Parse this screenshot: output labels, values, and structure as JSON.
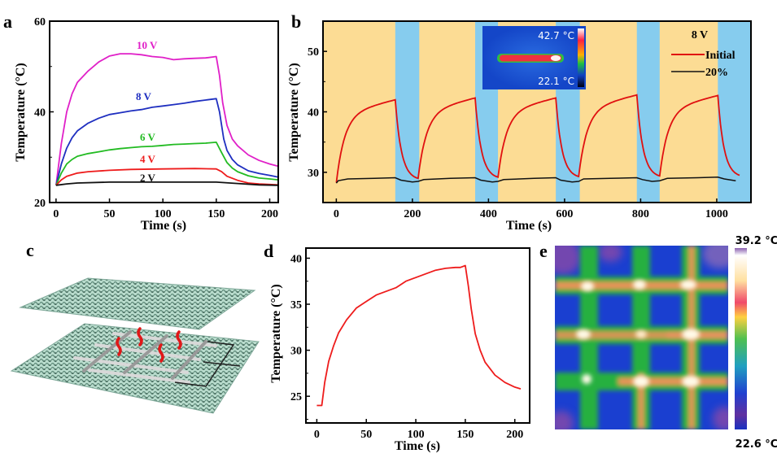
{
  "figure": {
    "panel_letters": [
      "a",
      "b",
      "c",
      "d",
      "e"
    ]
  },
  "chart_data": [
    {
      "id": "a",
      "type": "line",
      "title": "",
      "xlabel": "Time (s)",
      "ylabel": "Temperature (°C)",
      "xlim": [
        -6,
        208
      ],
      "ylim": [
        20,
        60
      ],
      "xticks": [
        0,
        50,
        100,
        150,
        200
      ],
      "yticks": [
        20,
        40,
        60
      ],
      "yminor": [
        30,
        50
      ],
      "grid": false,
      "series": [
        {
          "name": "10 V",
          "color": "#e020c8",
          "x": [
            0,
            5,
            10,
            15,
            20,
            30,
            40,
            50,
            60,
            70,
            80,
            90,
            100,
            110,
            120,
            130,
            140,
            150,
            153,
            156,
            160,
            165,
            170,
            180,
            190,
            200,
            208
          ],
          "y": [
            23.8,
            33,
            40,
            44,
            46.5,
            49,
            51,
            52.3,
            52.8,
            52.8,
            52.6,
            52.2,
            52,
            51.5,
            51.7,
            51.8,
            51.9,
            52.2,
            48,
            42,
            37,
            34,
            32.5,
            30.5,
            29.3,
            28.5,
            28
          ]
        },
        {
          "name": "8 V",
          "color": "#1f2fc0",
          "x": [
            0,
            5,
            10,
            15,
            20,
            30,
            40,
            50,
            60,
            70,
            80,
            90,
            100,
            110,
            120,
            130,
            140,
            150,
            153,
            157,
            160,
            165,
            170,
            180,
            190,
            200,
            208
          ],
          "y": [
            23.8,
            28.5,
            32,
            34.3,
            35.8,
            37.5,
            38.6,
            39.4,
            39.8,
            40.2,
            40.5,
            41,
            41.3,
            41.6,
            41.9,
            42.3,
            42.6,
            42.9,
            40,
            34,
            31.5,
            29.5,
            28.3,
            27,
            26.4,
            26,
            25.6
          ]
        },
        {
          "name": "6 V",
          "color": "#22bb22",
          "x": [
            0,
            5,
            10,
            15,
            20,
            30,
            40,
            50,
            60,
            70,
            80,
            90,
            100,
            110,
            120,
            130,
            140,
            150,
            155,
            160,
            165,
            170,
            180,
            190,
            200,
            208
          ],
          "y": [
            23.8,
            26.5,
            28.5,
            29.5,
            30.2,
            30.8,
            31.2,
            31.6,
            31.9,
            32.1,
            32.3,
            32.4,
            32.6,
            32.8,
            32.9,
            33,
            33.1,
            33.3,
            31,
            28.8,
            27.6,
            26.8,
            25.9,
            25.4,
            25.2,
            25
          ]
        },
        {
          "name": "4 V",
          "color": "#ee1c1c",
          "x": [
            0,
            5,
            10,
            20,
            30,
            50,
            70,
            100,
            130,
            150,
            155,
            160,
            170,
            180,
            190,
            208
          ],
          "y": [
            23.8,
            25,
            25.8,
            26.5,
            26.8,
            27.1,
            27.3,
            27.4,
            27.5,
            27.4,
            26.8,
            25.8,
            24.9,
            24.3,
            24.1,
            23.9
          ]
        },
        {
          "name": "2 V",
          "color": "#111111",
          "x": [
            0,
            10,
            20,
            50,
            100,
            150,
            170,
            190,
            208
          ],
          "y": [
            23.8,
            24.1,
            24.3,
            24.5,
            24.5,
            24.5,
            24.2,
            23.9,
            23.8
          ]
        }
      ],
      "annotations": [
        "10 V",
        "8 V",
        "6 V",
        "4 V",
        "2 V"
      ]
    },
    {
      "id": "b",
      "type": "line",
      "title": "",
      "xlabel": "Time (s)",
      "ylabel": "Temperature (°C)",
      "xlim": [
        -35,
        1090
      ],
      "ylim": [
        25,
        55
      ],
      "xticks": [
        0,
        200,
        400,
        600,
        800,
        1000
      ],
      "yticks": [
        30,
        40,
        50
      ],
      "yminor": [
        35,
        45
      ],
      "grid": false,
      "background_bands": {
        "heating_color": "#fcdc94",
        "cooling_color": "#86ccee",
        "cooling_intervals": [
          [
            155,
            218
          ],
          [
            365,
            425
          ],
          [
            577,
            640
          ],
          [
            790,
            850
          ],
          [
            1003,
            1090
          ]
        ]
      },
      "legend": {
        "title": "8 V",
        "position": "top-right",
        "entries": [
          {
            "label": "Initial",
            "color": "#e01010"
          },
          {
            "label": "20%",
            "color": "#111111"
          }
        ]
      },
      "series": [
        {
          "name": "Initial",
          "color": "#e01010",
          "cycles": [
            {
              "start": 0,
              "start_temp": 28.3,
              "peak_time": 155,
              "peak_temp": 42.0,
              "end": 215,
              "end_temp": 29.0
            },
            {
              "start": 215,
              "start_temp": 29.0,
              "peak_time": 365,
              "peak_temp": 42.3,
              "end": 425,
              "end_temp": 29.2
            },
            {
              "start": 425,
              "start_temp": 29.2,
              "peak_time": 577,
              "peak_temp": 42.3,
              "end": 637,
              "end_temp": 29.3
            },
            {
              "start": 637,
              "start_temp": 29.3,
              "peak_time": 790,
              "peak_temp": 42.8,
              "end": 850,
              "end_temp": 29.4
            },
            {
              "start": 850,
              "start_temp": 29.4,
              "peak_time": 1003,
              "peak_temp": 42.7,
              "end": 1060,
              "end_temp": 29.5
            }
          ]
        },
        {
          "name": "20%",
          "color": "#111111",
          "x": [
            0,
            5,
            30,
            100,
            155,
            170,
            200,
            215,
            230,
            300,
            365,
            380,
            410,
            425,
            440,
            520,
            577,
            590,
            620,
            637,
            650,
            720,
            790,
            805,
            830,
            850,
            870,
            950,
            1003,
            1020,
            1050
          ],
          "y": [
            28.2,
            28.6,
            28.9,
            29.0,
            29.1,
            28.7,
            28.4,
            28.5,
            28.8,
            29.0,
            29.1,
            28.7,
            28.4,
            28.5,
            28.8,
            29.0,
            29.1,
            28.7,
            28.4,
            28.5,
            28.9,
            29.0,
            29.1,
            28.8,
            28.5,
            28.6,
            29.0,
            29.1,
            29.2,
            28.9,
            28.6
          ]
        }
      ],
      "inset": {
        "max_label": "42.7 °C",
        "min_label": "22.1 °C"
      }
    },
    {
      "id": "d",
      "type": "line",
      "title": "",
      "xlabel": "Time (s)",
      "ylabel": "Temperature (°C)",
      "xlim": [
        -11,
        215
      ],
      "ylim": [
        22.1,
        41.1
      ],
      "xticks": [
        0,
        50,
        100,
        150,
        200
      ],
      "yticks": [
        25,
        30,
        35,
        40
      ],
      "yminor": [
        22.5,
        27.5,
        32.5,
        37.5
      ],
      "grid": false,
      "series": [
        {
          "name": "temperature",
          "color": "#ee1c1c",
          "x": [
            0,
            5,
            8,
            12,
            17,
            22,
            30,
            40,
            50,
            60,
            70,
            80,
            90,
            100,
            110,
            120,
            130,
            140,
            145,
            150,
            153,
            156,
            160,
            165,
            170,
            180,
            190,
            200,
            206
          ],
          "y": [
            24,
            24,
            26.5,
            28.8,
            30.5,
            31.9,
            33.3,
            34.6,
            35.3,
            36,
            36.4,
            36.8,
            37.5,
            37.9,
            38.3,
            38.7,
            38.9,
            39,
            39,
            39.2,
            37,
            34.5,
            31.8,
            30,
            28.7,
            27.3,
            26.5,
            26,
            25.8
          ]
        }
      ]
    }
  ],
  "panel_e": {
    "colorbar_max_label": "39.2 °C",
    "colorbar_min_label": "22.6 °C"
  }
}
